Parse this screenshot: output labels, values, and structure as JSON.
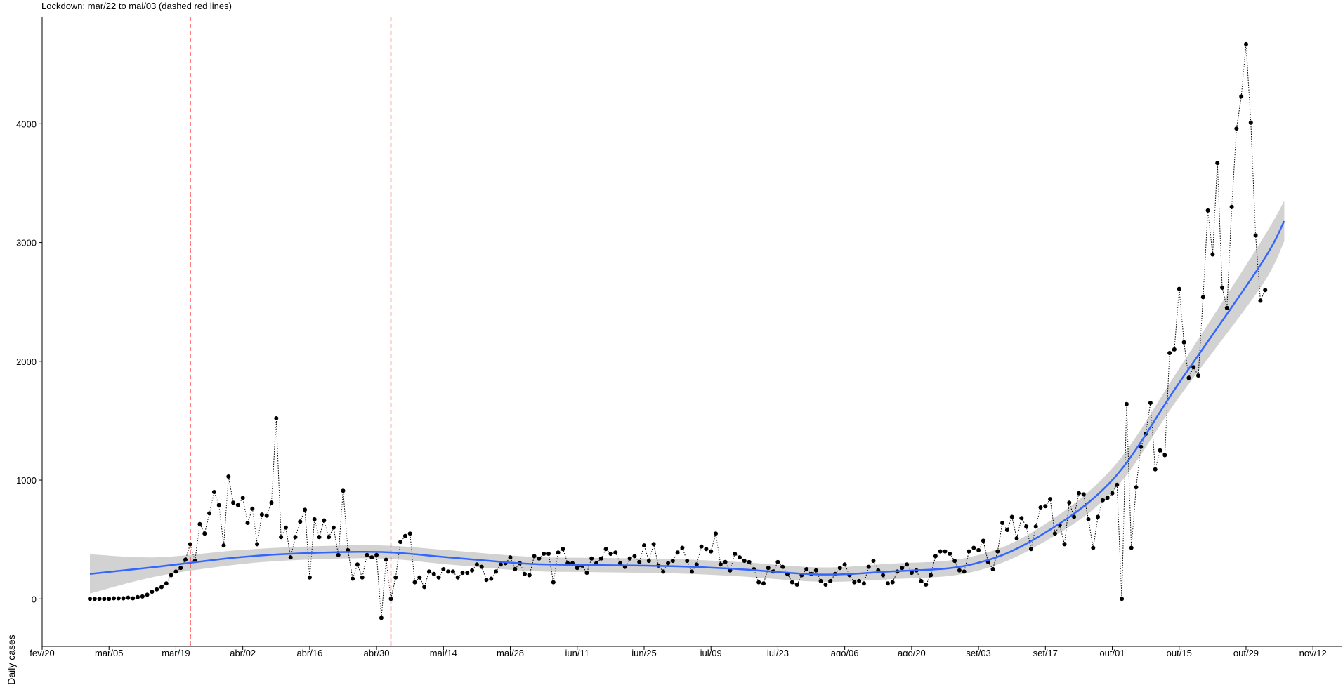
{
  "chart_data": {
    "type": "scatter",
    "subtitle": "Lockdown: mar/22 to mai/03 (dashed red lines)",
    "ylabel": "Daily cases",
    "xlabel": "",
    "ylim": [
      -400,
      4900
    ],
    "xlim": [
      "2020-02-20",
      "2020-11-18"
    ],
    "y_ticks": [
      0,
      1000,
      2000,
      3000,
      4000
    ],
    "x_ticks": [
      {
        "date": "2020-02-20",
        "label": "fev/20"
      },
      {
        "date": "2020-03-05",
        "label": "mar/05"
      },
      {
        "date": "2020-03-19",
        "label": "mar/19"
      },
      {
        "date": "2020-04-02",
        "label": "abr/02"
      },
      {
        "date": "2020-04-16",
        "label": "abr/16"
      },
      {
        "date": "2020-04-30",
        "label": "abr/30"
      },
      {
        "date": "2020-05-14",
        "label": "mai/14"
      },
      {
        "date": "2020-05-28",
        "label": "mai/28"
      },
      {
        "date": "2020-06-11",
        "label": "jun/11"
      },
      {
        "date": "2020-06-25",
        "label": "jun/25"
      },
      {
        "date": "2020-07-09",
        "label": "jul/09"
      },
      {
        "date": "2020-07-23",
        "label": "jul/23"
      },
      {
        "date": "2020-08-06",
        "label": "ago/06"
      },
      {
        "date": "2020-08-20",
        "label": "ago/20"
      },
      {
        "date": "2020-09-03",
        "label": "set/03"
      },
      {
        "date": "2020-09-17",
        "label": "set/17"
      },
      {
        "date": "2020-10-01",
        "label": "out/01"
      },
      {
        "date": "2020-10-15",
        "label": "out/15"
      },
      {
        "date": "2020-10-29",
        "label": "out/29"
      },
      {
        "date": "2020-11-12",
        "label": "nov/12"
      }
    ],
    "vlines": [
      "2020-03-22",
      "2020-05-03"
    ],
    "grid": false,
    "series": [
      {
        "type": "points",
        "x_start": "2020-03-01",
        "y": [
          0,
          0,
          0,
          0,
          0,
          5,
          5,
          5,
          10,
          5,
          15,
          20,
          35,
          60,
          80,
          100,
          130,
          200,
          230,
          260,
          330,
          460,
          320,
          630,
          550,
          720,
          900,
          790,
          450,
          1030,
          810,
          790,
          850,
          640,
          760,
          460,
          710,
          700,
          810,
          1520,
          520,
          600,
          350,
          520,
          650,
          750,
          180,
          670,
          520,
          660,
          520,
          600,
          370,
          910,
          410,
          170,
          290,
          180,
          370,
          350,
          370,
          -160,
          330,
          0,
          180,
          480,
          530,
          550,
          140,
          180,
          100,
          230,
          210,
          180,
          250,
          230,
          230,
          180,
          220,
          220,
          240,
          290,
          270,
          160,
          170,
          230,
          290,
          300,
          350,
          250,
          300,
          210,
          200,
          360,
          340,
          380,
          380,
          140,
          390,
          420,
          300,
          300,
          260,
          280,
          220,
          340,
          300,
          340,
          420,
          380,
          390,
          300,
          270,
          340,
          360,
          310,
          450,
          320,
          460,
          280,
          230,
          300,
          320,
          390,
          430,
          320,
          230,
          290,
          440,
          420,
          400,
          550,
          290,
          310,
          240,
          380,
          350,
          320,
          310,
          250,
          140,
          130,
          260,
          230,
          310,
          270,
          210,
          140,
          120,
          200,
          250,
          210,
          240,
          150,
          120,
          150,
          210,
          260,
          290,
          200,
          140,
          150,
          130,
          270,
          320,
          240,
          200,
          130,
          140,
          230,
          260,
          290,
          220,
          240,
          150,
          120,
          200,
          360,
          400,
          400,
          380,
          320,
          240,
          230,
          400,
          430,
          410,
          490,
          310,
          250,
          400,
          640,
          580,
          690,
          510,
          680,
          610,
          420,
          610,
          770,
          780,
          840,
          550,
          620,
          460,
          810,
          690,
          890,
          880,
          670,
          430,
          690,
          830,
          850,
          890,
          960,
          0,
          1640,
          430,
          940,
          1280,
          1390,
          1650,
          1090,
          1250,
          1210,
          2070,
          2100,
          2610,
          2160,
          1860,
          1950,
          1880,
          2540,
          3270,
          2900,
          3670,
          2620,
          2450,
          3300,
          3960,
          4230,
          4670,
          4010,
          3060,
          2510,
          2600
        ]
      },
      {
        "type": "smooth",
        "color": "#3366FF",
        "x": [
          "2020-03-01",
          "2020-03-15",
          "2020-04-01",
          "2020-04-15",
          "2020-05-01",
          "2020-05-15",
          "2020-06-01",
          "2020-06-15",
          "2020-07-01",
          "2020-07-15",
          "2020-08-01",
          "2020-08-15",
          "2020-09-01",
          "2020-09-15",
          "2020-10-01",
          "2020-10-15",
          "2020-11-01",
          "2020-11-06"
        ],
        "y": [
          210,
          270,
          350,
          385,
          395,
          350,
          295,
          285,
          275,
          250,
          205,
          230,
          285,
          510,
          1000,
          1820,
          2810,
          3180
        ],
        "se_lower": [
          45,
          190,
          290,
          330,
          340,
          290,
          235,
          225,
          215,
          190,
          145,
          165,
          220,
          440,
          900,
          1700,
          2620,
          3010
        ],
        "se_upper": [
          375,
          350,
          410,
          440,
          450,
          410,
          355,
          345,
          335,
          310,
          265,
          295,
          350,
          580,
          1100,
          1940,
          3000,
          3350
        ]
      }
    ]
  }
}
